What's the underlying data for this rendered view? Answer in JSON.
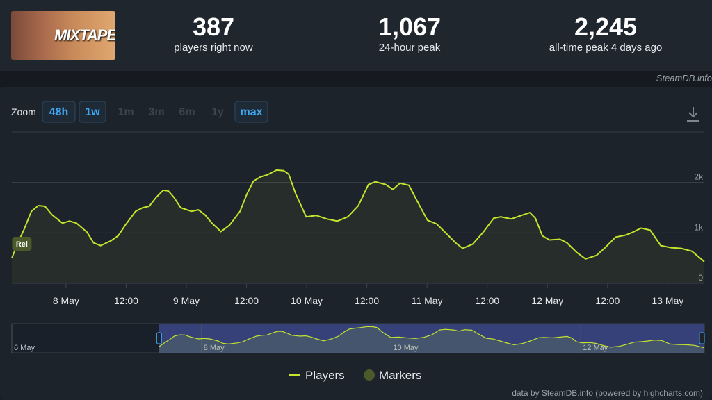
{
  "header": {
    "game_title": "MIXTAPE",
    "stats": [
      {
        "value": "387",
        "label": "players right now"
      },
      {
        "value": "1,067",
        "label": "24-hour peak"
      },
      {
        "value": "2,245",
        "label": "all-time peak 4 days ago"
      }
    ],
    "source": "SteamDB.info"
  },
  "zoom": {
    "label": "Zoom",
    "buttons": [
      "48h",
      "1w",
      "1m",
      "3m",
      "6m",
      "1y",
      "max"
    ],
    "active": [
      "48h",
      "1w",
      "max"
    ]
  },
  "chart_data": {
    "type": "line",
    "x": [
      -10.8,
      -9.7,
      -8.3,
      -6.9,
      -5.5,
      -4.2,
      -2.8,
      -0.7,
      0.7,
      2.1,
      4.2,
      5.5,
      6.9,
      9.0,
      10.4,
      11.8,
      13.9,
      15.3,
      16.6,
      18.0,
      19.4,
      20.4,
      21.5,
      22.9,
      25.0,
      26.4,
      27.7,
      29.1,
      30.9,
      32.6,
      34.7,
      36.1,
      37.4,
      38.8,
      40.2,
      42.0,
      43.4,
      44.4,
      45.8,
      47.9,
      49.9,
      52.0,
      54.1,
      56.2,
      58.3,
      60.3,
      61.7,
      63.8,
      65.2,
      66.6,
      68.4,
      70.0,
      72.1,
      73.9,
      75.6,
      77.7,
      79.1,
      81.1,
      83.2,
      85.3,
      86.7,
      88.8,
      90.8,
      92.5,
      93.6,
      95.0,
      96.4,
      98.5,
      99.9,
      101.9,
      103.6,
      105.8,
      107.5,
      109.6,
      111.6,
      113.0,
      114.7,
      116.5,
      118.6,
      120.7,
      122.7,
      124.8,
      127.3
    ],
    "series": [
      {
        "name": "Players",
        "color": "#c4e52c",
        "values": [
          499,
          777,
          1082,
          1429,
          1541,
          1527,
          1360,
          1193,
          1235,
          1193,
          1013,
          804,
          749,
          846,
          943,
          1152,
          1429,
          1499,
          1527,
          1707,
          1846,
          1832,
          1707,
          1499,
          1429,
          1457,
          1360,
          1193,
          1027,
          1152,
          1429,
          1777,
          2027,
          2110,
          2152,
          2245,
          2234,
          2166,
          1777,
          1318,
          1346,
          1277,
          1235,
          1318,
          1541,
          1957,
          2013,
          1957,
          1860,
          1985,
          1943,
          1638,
          1249,
          1179,
          1013,
          804,
          693,
          777,
          1013,
          1291,
          1318,
          1277,
          1346,
          1402,
          1291,
          943,
          860,
          874,
          804,
          610,
          485,
          554,
          707,
          916,
          957,
          1013,
          1096,
          1054,
          749,
          707,
          693,
          638,
          429
        ]
      }
    ],
    "markers": {
      "name": "Markers",
      "color": "#4b5a2a",
      "points": [
        {
          "x": -8.8,
          "label": "Rel"
        }
      ]
    },
    "xlim": [
      -10.8,
      127.3
    ],
    "xticks": [
      {
        "value": 0,
        "label": "8 May"
      },
      {
        "value": 12,
        "label": "12:00"
      },
      {
        "value": 24,
        "label": "9 May"
      },
      {
        "value": 36,
        "label": "12:00"
      },
      {
        "value": 48,
        "label": "10 May"
      },
      {
        "value": 60,
        "label": "12:00"
      },
      {
        "value": 72,
        "label": "11 May"
      },
      {
        "value": 84,
        "label": "12:00"
      },
      {
        "value": 96,
        "label": "12 May"
      },
      {
        "value": 108,
        "label": "12:00"
      },
      {
        "value": 120,
        "label": "13 May"
      }
    ],
    "ylim": [
      0,
      3000
    ],
    "yticks": [
      0,
      {
        "value": 1000,
        "label": "1k"
      },
      {
        "value": 2000,
        "label": "2k"
      }
    ],
    "grid": true,
    "legend": "bottom",
    "navigator": {
      "xlim": [
        -48,
        127.3
      ],
      "xticks": [
        {
          "value": -48,
          "label": "6 May"
        },
        {
          "value": 0,
          "label": "8 May"
        },
        {
          "value": 48,
          "label": "10 May"
        },
        {
          "value": 96,
          "label": "12 May"
        }
      ]
    }
  },
  "credit": "data by SteamDB.info (powered by highcharts.com)"
}
